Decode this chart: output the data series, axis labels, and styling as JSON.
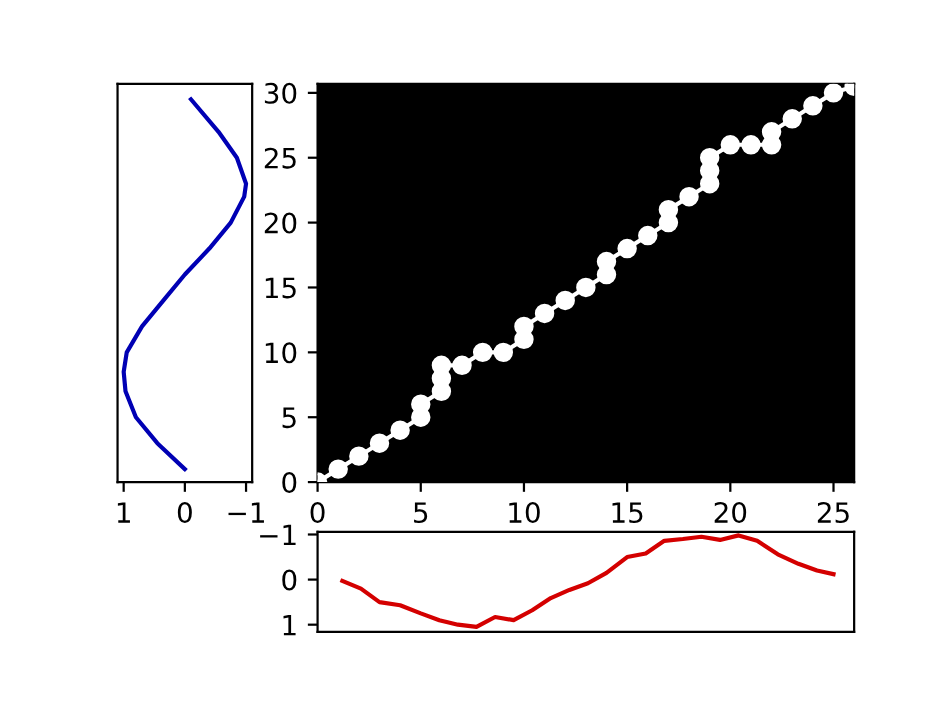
{
  "chart_data": [
    {
      "type": "line",
      "x": [
        1,
        3,
        5,
        7,
        8.5,
        10,
        12,
        14,
        16,
        18,
        20,
        22,
        23,
        25,
        27,
        29.5
      ],
      "series": [
        {
          "color": "#0000b4",
          "values": [
            0,
            0.45,
            0.8,
            0.97,
            1.0,
            0.95,
            0.7,
            0.35,
            0.0,
            -0.4,
            -0.75,
            -0.97,
            -1.0,
            -0.85,
            -0.55,
            -0.1
          ]
        }
      ],
      "orientation": "horizontal",
      "xlim": [
        1.1,
        -1.1
      ],
      "xticks": [
        1,
        0,
        {
          "value": -1,
          "label": "−1"
        }
      ],
      "ylim": [
        0,
        30.7
      ],
      "tick_labels": "x",
      "grid": false,
      "legend": false
    },
    {
      "type": "line",
      "x": [
        0,
        1,
        2,
        3,
        4,
        5,
        5,
        6,
        6,
        6,
        7,
        8,
        9,
        10,
        10,
        11,
        12,
        13,
        14,
        14,
        15,
        16,
        17,
        17,
        18,
        19,
        19,
        19,
        20,
        21,
        22,
        22,
        23,
        24,
        25,
        26
      ],
      "series": [
        {
          "color": "#ffffff",
          "values": [
            0,
            1,
            2,
            3,
            4,
            5,
            6,
            7,
            8,
            9,
            9,
            10,
            10,
            11,
            12,
            13,
            14,
            15,
            16,
            17,
            18,
            19,
            20,
            21,
            22,
            23,
            24,
            25,
            26,
            26,
            26,
            27,
            28,
            29,
            30,
            30.5
          ]
        }
      ],
      "marker": "circle",
      "xlim": [
        0,
        26
      ],
      "xticks": [
        0,
        5,
        10,
        15,
        20,
        25
      ],
      "ylim": [
        0,
        30.7
      ],
      "yticks": [
        0,
        5,
        10,
        15,
        20,
        25,
        30
      ],
      "grid": false,
      "legend": false
    },
    {
      "type": "line",
      "x": [
        1.2,
        2.1,
        3.0,
        4.0,
        5.0,
        5.9,
        6.8,
        7.7,
        8.6,
        9.5,
        10.4,
        11.3,
        12.2,
        13.1,
        14.0,
        15.0,
        15.9,
        16.8,
        17.7,
        18.6,
        19.5,
        20.4,
        21.3,
        22.3,
        23.3,
        24.2,
        25.0
      ],
      "series": [
        {
          "color": "#d40000",
          "values": [
            0.03,
            0.2,
            0.5,
            0.57,
            0.75,
            0.9,
            1.0,
            1.05,
            0.83,
            0.9,
            0.68,
            0.41,
            0.23,
            0.08,
            -0.15,
            -0.5,
            -0.58,
            -0.86,
            -0.9,
            -0.95,
            -0.88,
            -0.98,
            -0.86,
            -0.56,
            -0.35,
            -0.2,
            -0.12
          ]
        }
      ],
      "xlim": [
        0,
        26
      ],
      "ylim": [
        1.16,
        -1.06
      ],
      "yticks": [
        {
          "value": -1,
          "label": "−1"
        },
        0,
        1
      ],
      "tick_labels": "y",
      "grid": false,
      "legend": false
    }
  ]
}
